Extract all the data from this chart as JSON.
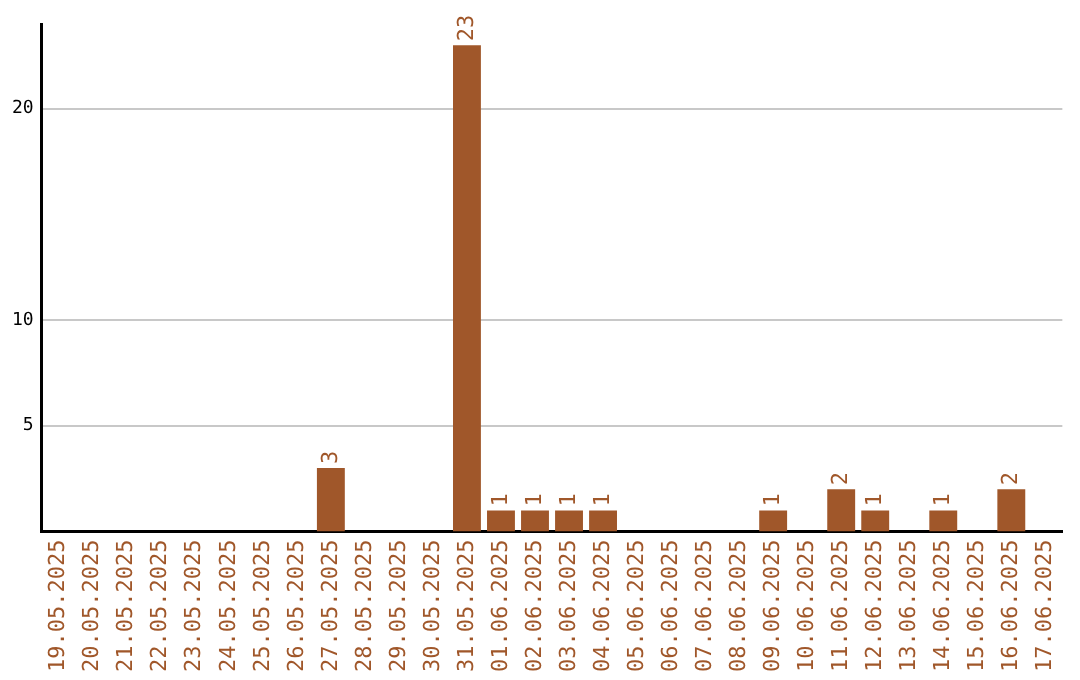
{
  "chart_data": {
    "type": "bar",
    "categories": [
      "19.05.2025",
      "20.05.2025",
      "21.05.2025",
      "22.05.2025",
      "23.05.2025",
      "24.05.2025",
      "25.05.2025",
      "26.05.2025",
      "27.05.2025",
      "28.05.2025",
      "29.05.2025",
      "30.05.2025",
      "31.05.2025",
      "01.06.2025",
      "02.06.2025",
      "03.06.2025",
      "04.06.2025",
      "05.06.2025",
      "06.06.2025",
      "07.06.2025",
      "08.06.2025",
      "09.06.2025",
      "10.06.2025",
      "11.06.2025",
      "12.06.2025",
      "13.06.2025",
      "14.06.2025",
      "15.06.2025",
      "16.06.2025",
      "17.06.2025"
    ],
    "values": [
      0,
      0,
      0,
      0,
      0,
      0,
      0,
      0,
      3,
      0,
      0,
      0,
      23,
      1,
      1,
      1,
      1,
      0,
      0,
      0,
      0,
      1,
      0,
      2,
      1,
      0,
      1,
      0,
      2,
      0
    ],
    "value_labels": [
      null,
      null,
      null,
      null,
      null,
      null,
      null,
      null,
      "3",
      null,
      null,
      null,
      "23",
      "1",
      "1",
      "1",
      "1",
      null,
      null,
      null,
      null,
      "1",
      null,
      "2",
      "1",
      null,
      "1",
      null,
      "2",
      null
    ],
    "color": "#a0572a",
    "ylim": [
      0,
      24
    ],
    "yticks": [
      5,
      10,
      20
    ],
    "grid": "y",
    "legend": false
  }
}
